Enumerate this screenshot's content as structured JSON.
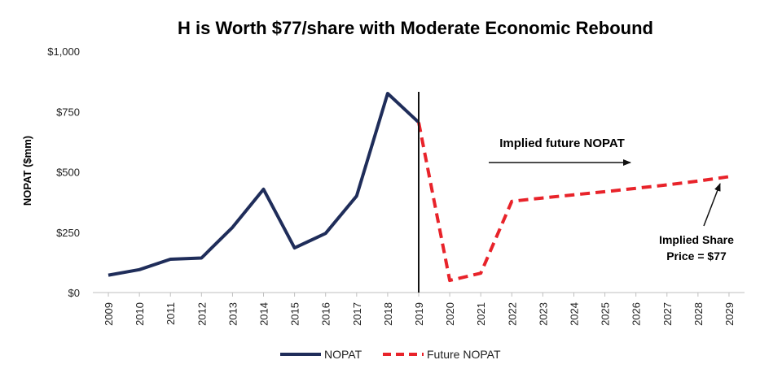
{
  "chart_data": {
    "type": "line",
    "title": "H is Worth $77/share with Moderate Economic Rebound",
    "ylabel": "NOPAT ($mm)",
    "ylim": [
      0,
      1000
    ],
    "yticks": [
      0,
      250,
      500,
      750,
      1000
    ],
    "ytick_labels": [
      "$0",
      "$250",
      "$500",
      "$750",
      "$1,000"
    ],
    "categories": [
      "2009",
      "2010",
      "2011",
      "2012",
      "2013",
      "2014",
      "2015",
      "2016",
      "2017",
      "2018",
      "2019",
      "2020",
      "2021",
      "2022",
      "2023",
      "2024",
      "2025",
      "2026",
      "2027",
      "2028",
      "2029"
    ],
    "series": [
      {
        "name": "NOPAT",
        "color": "#1f2d5a",
        "style": "solid",
        "x": [
          "2009",
          "2010",
          "2011",
          "2012",
          "2013",
          "2014",
          "2015",
          "2016",
          "2017",
          "2018",
          "2019"
        ],
        "values": [
          72,
          95,
          138,
          143,
          270,
          428,
          185,
          245,
          400,
          825,
          705
        ]
      },
      {
        "name": "Future NOPAT",
        "color": "#e8232a",
        "style": "dashed",
        "x": [
          "2019",
          "2020",
          "2021",
          "2022",
          "2023",
          "2024",
          "2025",
          "2026",
          "2027",
          "2028",
          "2029"
        ],
        "values": [
          705,
          50,
          80,
          378,
          392,
          405,
          418,
          432,
          446,
          462,
          480
        ]
      }
    ],
    "vertical_marker": "2019",
    "annotations": [
      {
        "text": "Implied future NOPAT"
      },
      {
        "lines": [
          "Implied Share",
          "Price = $77"
        ]
      }
    ],
    "legend": "bottom-center",
    "grid": false
  }
}
